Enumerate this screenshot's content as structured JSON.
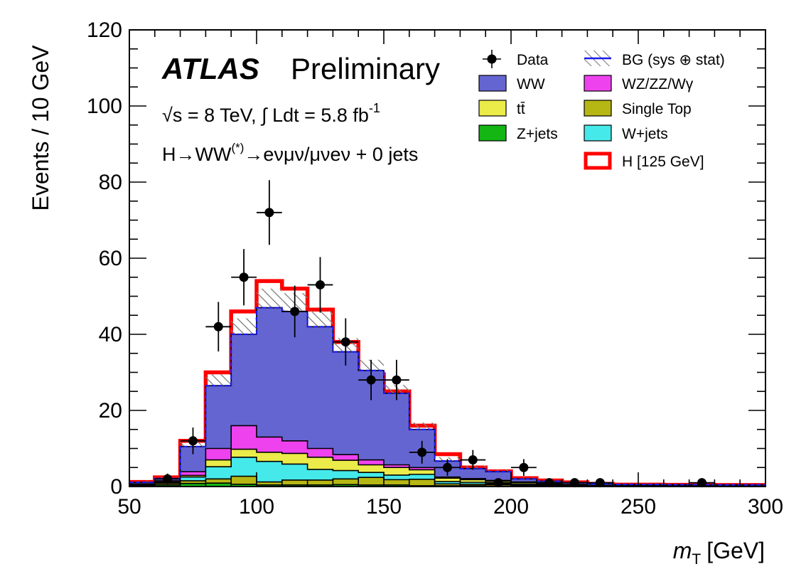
{
  "chart_data": {
    "type": "stacked-histogram",
    "xlabel": "m",
    "xlabel_sub": "T",
    "xlabel_unit": "[GeV]",
    "ylabel": "Events / 10 GeV",
    "xlim": [
      50,
      300
    ],
    "ylim": [
      0,
      120
    ],
    "x_ticks": [
      50,
      100,
      150,
      200,
      250,
      300
    ],
    "y_ticks": [
      0,
      20,
      40,
      60,
      80,
      100,
      120
    ],
    "bin_edges": [
      50,
      60,
      70,
      80,
      90,
      100,
      110,
      120,
      130,
      140,
      150,
      160,
      170,
      180,
      190,
      200,
      210,
      220,
      230,
      240,
      250,
      260,
      270,
      280,
      290,
      300
    ],
    "series": [
      {
        "name": "Z+jets",
        "color": "#13b613",
        "values": [
          0.2,
          0.4,
          0.8,
          0.9,
          0.6,
          0.4,
          0.4,
          0.4,
          0.5,
          0.4,
          0.4,
          0.2,
          0.2,
          0.2,
          0.1,
          0.1,
          0.1,
          0.05,
          0.05,
          0.05,
          0.05,
          0.05,
          0.05,
          0.05,
          0.05
        ]
      },
      {
        "name": "Single Top",
        "color": "#b6b614",
        "values": [
          0.2,
          0.4,
          0.7,
          1.1,
          2.1,
          0.8,
          1.3,
          1.3,
          1.5,
          2.0,
          1.4,
          1.7,
          0.5,
          0.4,
          0.4,
          0.2,
          0.1,
          0.1,
          0.05,
          0.05,
          0.05,
          0.05,
          0.05,
          0.05,
          0.05
        ]
      },
      {
        "name": "W+jets",
        "color": "#45e9e9",
        "values": [
          0.1,
          0.2,
          1.0,
          3.2,
          5.0,
          5.4,
          4.2,
          2.8,
          2.2,
          1.3,
          1.2,
          1.3,
          0.6,
          0.5,
          0.3,
          0.3,
          0.2,
          0.1,
          0.05,
          0.05,
          0.05,
          0.05,
          0.05,
          0.05,
          0.05
        ]
      },
      {
        "name": "tt̄",
        "color": "#ebeb49",
        "values": [
          0.1,
          0.2,
          0.4,
          1.8,
          2.1,
          2.4,
          2.8,
          3.2,
          2.7,
          2.0,
          2.0,
          1.2,
          0.9,
          0.7,
          0.6,
          0.4,
          0.3,
          0.2,
          0.1,
          0.05,
          0.05,
          0.05,
          0.05,
          0.05,
          0.05
        ]
      },
      {
        "name": "WZ/ZZ/Wγ",
        "color": "#ef42ef",
        "values": [
          0.1,
          0.3,
          1.0,
          3.0,
          6.2,
          4.0,
          3.3,
          2.3,
          1.5,
          1.3,
          0.7,
          0.6,
          0.3,
          0.3,
          0.2,
          0.2,
          0.1,
          0.1,
          0.05,
          0.05,
          0.05,
          0.05,
          0.05,
          0.05,
          0.05
        ]
      },
      {
        "name": "WW",
        "color": "#6565d2",
        "values": [
          0.4,
          0.6,
          6.6,
          16.5,
          24.0,
          34.0,
          34.0,
          32.0,
          27.0,
          23.5,
          18.8,
          10.0,
          4.2,
          2.6,
          2.3,
          0.8,
          0.6,
          0.45,
          0.4,
          0.3,
          0.3,
          0.25,
          0.25,
          0.2,
          0.2
        ]
      }
    ],
    "bg_total_with_uncertainty_hatch": [
      1.1,
      2.1,
      10.5,
      26.5,
      40.0,
      47.0,
      46.0,
      42.0,
      35.5,
      30.5,
      24.5,
      15.0,
      6.7,
      4.7,
      3.9,
      2.0,
      1.4,
      1.0,
      0.65,
      0.5,
      0.5,
      0.45,
      0.45,
      0.4,
      0.4
    ],
    "bg_uncertainty": [
      0.3,
      0.4,
      1.2,
      3.0,
      4.2,
      5.0,
      4.8,
      4.2,
      3.5,
      2.8,
      2.2,
      1.8,
      1.0,
      0.7,
      0.5,
      0.3,
      0.2,
      0.2,
      0.1,
      0.1,
      0.1,
      0.1,
      0.1,
      0.1,
      0.1
    ],
    "signal_plus_bg_total": [
      1.2,
      2.4,
      12.0,
      30.0,
      46.0,
      54.0,
      52.0,
      46.5,
      38.0,
      29.5,
      25.0,
      16.0,
      8.5,
      5.0,
      4.0,
      2.2,
      1.6,
      1.1,
      0.7,
      0.5,
      0.5,
      0.45,
      0.45,
      0.4,
      0.4
    ],
    "data": {
      "name": "Data",
      "x": [
        65,
        75,
        85,
        95,
        105,
        115,
        125,
        135,
        145,
        155,
        165,
        175,
        185,
        195,
        205,
        215,
        225,
        235,
        275
      ],
      "y": [
        2,
        12,
        42,
        55,
        72,
        46,
        53,
        38,
        28,
        28,
        9,
        5,
        7,
        1,
        5,
        1,
        1,
        1,
        1
      ],
      "err": [
        1.4,
        3.5,
        6.5,
        7.4,
        8.5,
        6.8,
        7.3,
        6.2,
        5.3,
        5.3,
        3.0,
        2.2,
        2.6,
        1.0,
        2.2,
        1.0,
        1.0,
        1.0,
        1.0
      ]
    },
    "legend": {
      "placement": "top-right",
      "entries": [
        {
          "label": "Data",
          "kind": "marker"
        },
        {
          "label": "BG (sys ⊕ stat)",
          "kind": "hatch-line"
        },
        {
          "label": "WW",
          "kind": "fill",
          "color": "#6565d2"
        },
        {
          "label": "WZ/ZZ/Wγ",
          "kind": "fill",
          "color": "#ef42ef"
        },
        {
          "label": "tt̄",
          "kind": "fill",
          "color": "#ebeb49"
        },
        {
          "label": "Single Top",
          "kind": "fill",
          "color": "#b6b614"
        },
        {
          "label": "Z+jets",
          "kind": "fill",
          "color": "#13b613"
        },
        {
          "label": "W+jets",
          "kind": "fill",
          "color": "#45e9e9"
        },
        {
          "label": "H [125 GeV]",
          "kind": "thick-outline",
          "color": "#ff0000"
        }
      ]
    },
    "annotations": {
      "experiment": "ATLAS",
      "status": "Preliminary",
      "energy": "√s = 8 TeV, ∫ Ldt = 5.8 fb",
      "energy_sup": "-1",
      "channel_pre": "H→WW",
      "channel_sup": "(*)",
      "channel_post": "→eνμν/μνeν + 0 jets"
    },
    "colors": {
      "bg_line": "#1a1aee",
      "signal": "#ff0000",
      "hatch": "#7f7f7f"
    }
  }
}
